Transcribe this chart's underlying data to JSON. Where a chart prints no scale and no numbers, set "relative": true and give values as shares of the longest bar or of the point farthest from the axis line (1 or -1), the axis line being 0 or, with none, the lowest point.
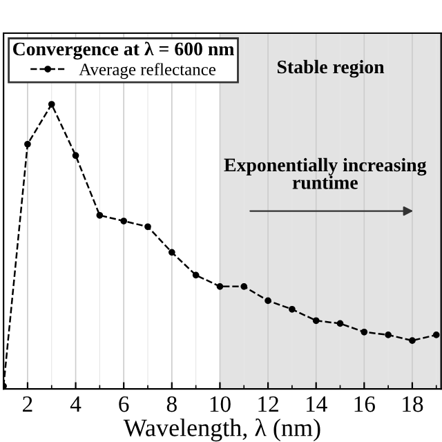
{
  "chart_data": {
    "type": "line",
    "xlabel": "Wavelength, λ (nm)",
    "legend_title": "Convergence at λ = 600 nm",
    "x": [
      1,
      2,
      3,
      4,
      5,
      6,
      7,
      8,
      9,
      10,
      11,
      12,
      13,
      14,
      15,
      16,
      17,
      18,
      19
    ],
    "series": [
      {
        "name": "Average reflectance",
        "color": "#000000",
        "values": [
          0.01,
          0.86,
          1,
          0.82,
          0.61,
          0.59,
          0.57,
          0.48,
          0.4,
          0.36,
          0.36,
          0.31,
          0.28,
          0.24,
          0.23,
          0.2,
          0.19,
          0.17,
          0.19
        ]
      }
    ],
    "relative": true,
    "xlim": [
      1,
      19.2
    ],
    "xticks": [
      2,
      4,
      6,
      8,
      10,
      12,
      14,
      16,
      18
    ],
    "bands": [
      {
        "axis": "x",
        "from": 10,
        "to": 19.2,
        "label": "Stable region",
        "color": "#e3e3e3"
      }
    ],
    "annotations": [
      "Exponentially increasing runtime"
    ],
    "grid": "x",
    "legend": "top left",
    "tick_labels": "x",
    "marker": "circle",
    "line_style": "dashed"
  }
}
